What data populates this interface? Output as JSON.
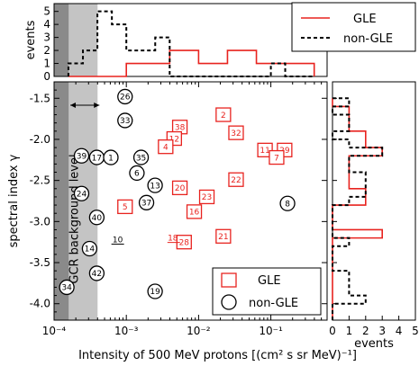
{
  "chart_data": {
    "type": "scatter",
    "xlabel": "Intensity of 500 MeV protons [(cm² s sr MeV)⁻¹]",
    "ylabel": "spectral index γ",
    "xscale": "log",
    "xlim": [
      0.0001,
      0.6
    ],
    "ylim": [
      -4.2,
      -1.3
    ],
    "x_ticklabels": [
      "10⁻⁴",
      "10⁻³",
      "10⁻²",
      "10⁻¹"
    ],
    "y_ticklabels": [
      "-1.5",
      "-2.0",
      "-2.5",
      "-3.0",
      "-3.5",
      "-4.0"
    ],
    "band_label": "GCR background level",
    "background_band": {
      "dark": [
        0.0001,
        0.00016
      ],
      "light": [
        0.00016,
        0.0004
      ]
    },
    "series": [
      {
        "name": "GLE",
        "marker": "square",
        "color": "#e8231f",
        "points": [
          {
            "id": "2",
            "x": 0.022,
            "y": -1.7
          },
          {
            "id": "38",
            "x": 0.0055,
            "y": -1.85
          },
          {
            "id": "32",
            "x": 0.033,
            "y": -1.92
          },
          {
            "id": "12",
            "x": 0.0046,
            "y": -1.99
          },
          {
            "id": "4",
            "x": 0.0035,
            "y": -2.09
          },
          {
            "id": "11",
            "x": 0.083,
            "y": -2.13
          },
          {
            "id": "29",
            "x": 0.155,
            "y": -2.13
          },
          {
            "id": "7",
            "x": 0.12,
            "y": -2.22
          },
          {
            "id": "22",
            "x": 0.033,
            "y": -2.49
          },
          {
            "id": "20",
            "x": 0.0055,
            "y": -2.59
          },
          {
            "id": "23",
            "x": 0.013,
            "y": -2.7
          },
          {
            "id": "5",
            "x": 0.00096,
            "y": -2.82
          },
          {
            "id": "16",
            "x": 0.0087,
            "y": -2.88
          },
          {
            "id": "21",
            "x": 0.022,
            "y": -3.18
          },
          {
            "id": "28",
            "x": 0.0063,
            "y": -3.25
          }
        ],
        "label_only": [
          {
            "id": "18",
            "x": 0.0044,
            "y": -3.2
          }
        ]
      },
      {
        "name": "non-GLE",
        "marker": "circle",
        "color": "#000000",
        "points": [
          {
            "id": "26",
            "x": 0.00096,
            "y": -1.48
          },
          {
            "id": "33",
            "x": 0.00096,
            "y": -1.77
          },
          {
            "id": "39",
            "x": 0.00024,
            "y": -2.2
          },
          {
            "id": "17",
            "x": 0.00039,
            "y": -2.22
          },
          {
            "id": "1",
            "x": 0.00061,
            "y": -2.22
          },
          {
            "id": "35",
            "x": 0.0016,
            "y": -2.22
          },
          {
            "id": "6",
            "x": 0.0014,
            "y": -2.41
          },
          {
            "id": "13",
            "x": 0.0025,
            "y": -2.56
          },
          {
            "id": "24",
            "x": 0.00024,
            "y": -2.66
          },
          {
            "id": "37",
            "x": 0.0019,
            "y": -2.77
          },
          {
            "id": "8",
            "x": 0.17,
            "y": -2.78
          },
          {
            "id": "40",
            "x": 0.00039,
            "y": -2.95
          },
          {
            "id": "14",
            "x": 0.00031,
            "y": -3.33
          },
          {
            "id": "42",
            "x": 0.00039,
            "y": -3.63
          },
          {
            "id": "34",
            "x": 0.00015,
            "y": -3.8
          },
          {
            "id": "19",
            "x": 0.0025,
            "y": -3.85
          }
        ],
        "label_only": [
          {
            "id": "10",
            "x": 0.00076,
            "y": -3.22
          }
        ]
      }
    ],
    "top_histogram": {
      "ylabel": "events",
      "yticks": [
        0,
        1,
        2,
        3,
        4,
        5
      ],
      "ylim": [
        0,
        5.6
      ],
      "bin_edges": [
        0.000158,
        0.000251,
        0.000398,
        0.000631,
        0.001,
        0.00158,
        0.00251,
        0.00398,
        0.00631,
        0.01,
        0.0158,
        0.0251,
        0.0398,
        0.0631,
        0.1,
        0.158,
        0.251,
        0.398
      ],
      "GLE": [
        0,
        0,
        0,
        0,
        1,
        1,
        1,
        2,
        2,
        1,
        1,
        2,
        2,
        1,
        1,
        1,
        1
      ],
      "non-GLE": [
        1,
        2,
        5,
        4,
        2,
        2,
        3,
        0,
        0,
        0,
        0,
        0,
        0,
        0,
        1,
        0,
        0
      ]
    },
    "right_histogram": {
      "xlabel": "events",
      "xticks": [
        0,
        1,
        2,
        3,
        4,
        5
      ],
      "xlim": [
        0,
        5
      ],
      "bin_edges": [
        -4.2,
        -4.1,
        -4.0,
        -3.9,
        -3.8,
        -3.7,
        -3.6,
        -3.5,
        -3.4,
        -3.3,
        -3.2,
        -3.1,
        -3.0,
        -2.9,
        -2.8,
        -2.7,
        -2.6,
        -2.5,
        -2.4,
        -2.3,
        -2.2,
        -2.1,
        -2.0,
        -1.9,
        -1.8,
        -1.7,
        -1.6,
        -1.5
      ],
      "GLE": [
        0,
        0,
        0,
        0,
        0,
        0,
        0,
        0,
        0,
        0,
        3,
        0,
        0,
        0,
        2,
        2,
        1,
        1,
        1,
        1,
        3,
        2,
        2,
        1,
        1,
        1,
        0
      ],
      "non-GLE": [
        0,
        0,
        2,
        1,
        1,
        1,
        0,
        0,
        0,
        1,
        0,
        0,
        0,
        0,
        1,
        2,
        2,
        2,
        1,
        1,
        3,
        1,
        0,
        1,
        1,
        0,
        1
      ]
    },
    "legend_top": {
      "entries": [
        "GLE",
        "non-GLE"
      ],
      "placement": "top-right"
    },
    "legend_main": {
      "entries": [
        "GLE",
        "non-GLE"
      ],
      "placement": "lower-right"
    },
    "colors": {
      "gle": "#e8231f",
      "non_gle": "#000000",
      "band_dark": "#8a8a8a",
      "band_light": "#c4c4c4"
    }
  }
}
